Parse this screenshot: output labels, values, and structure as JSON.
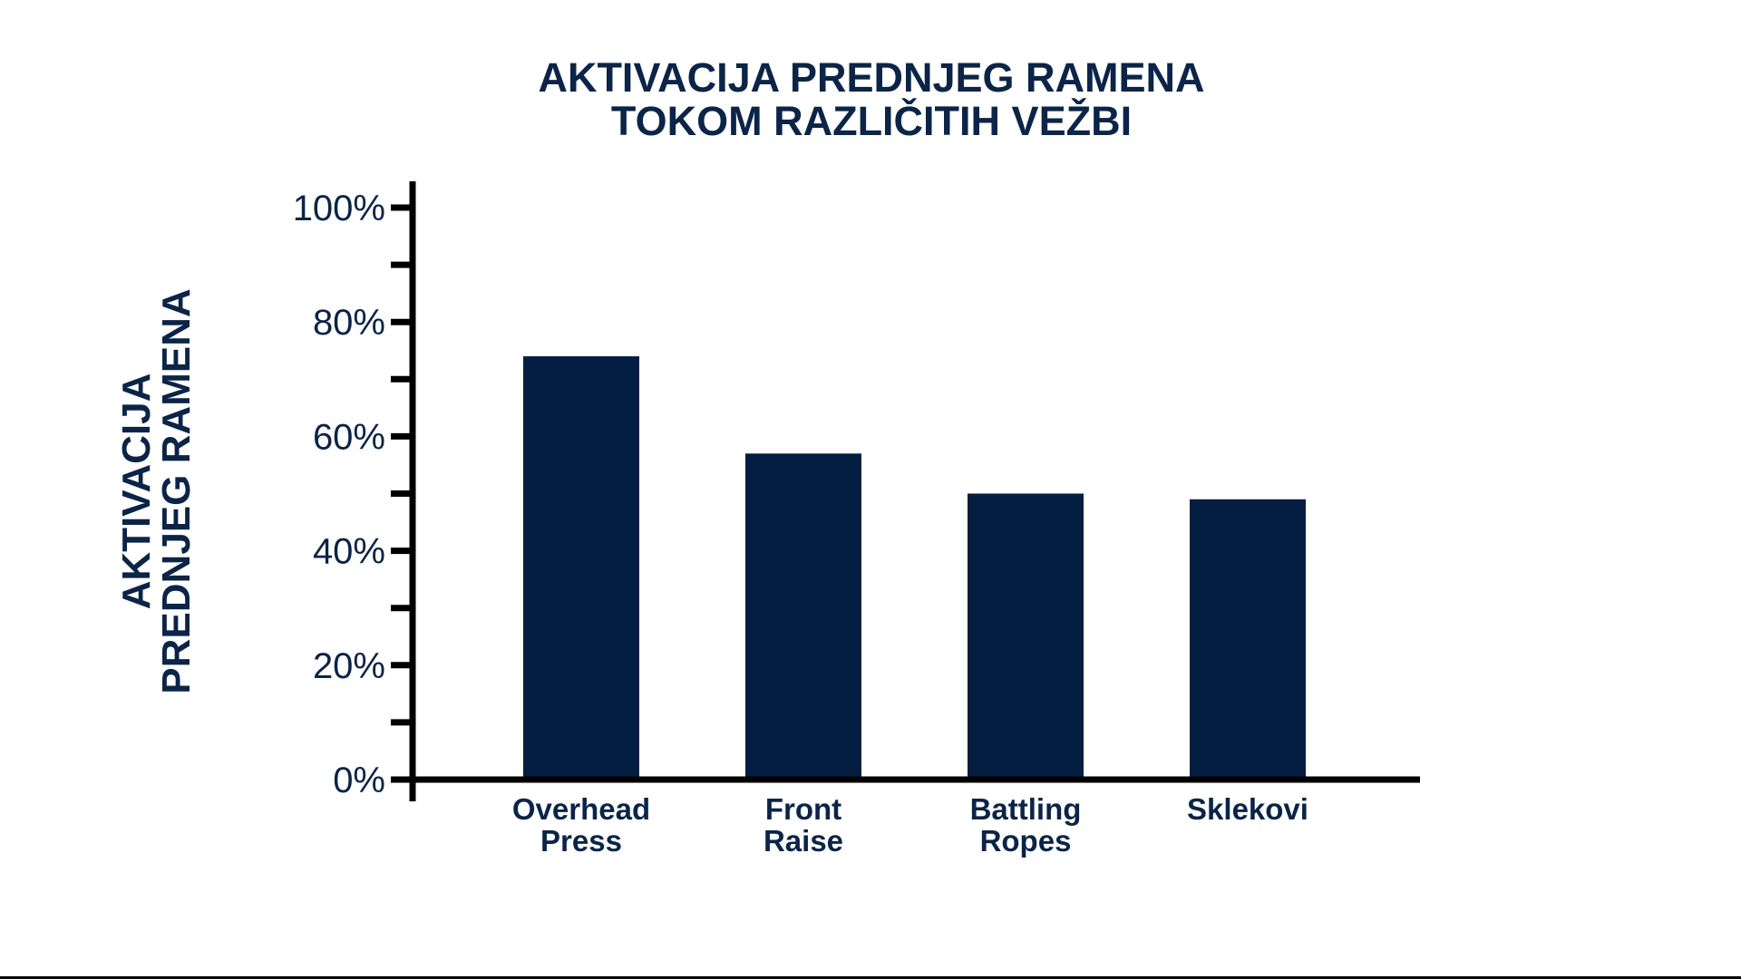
{
  "chart_data": {
    "type": "bar",
    "title": [
      "AKTIVACIJA PREDNJEG RAMENA",
      "TOKOM RAZLIČITIH VEŽBI"
    ],
    "ylabel": [
      "AKTIVACIJA",
      "PREDNJEG RAMENA"
    ],
    "xlabel": "",
    "categories": [
      [
        "Overhead",
        "Press"
      ],
      [
        "Front",
        "Raise"
      ],
      [
        "Battling",
        "Ropes"
      ],
      [
        "Sklekovi"
      ]
    ],
    "values": [
      74,
      57,
      50,
      49
    ],
    "unit": "%",
    "ylim": [
      0,
      100
    ],
    "yticks": [
      0,
      20,
      40,
      60,
      80,
      100
    ],
    "ytick_labels": [
      "0%",
      "20%",
      "40%",
      "60%",
      "80%",
      "100%"
    ],
    "minor_ticks": [
      10,
      30,
      50,
      70,
      90
    ],
    "grid": false,
    "legend": "none",
    "colors": {
      "bar": "#031e40",
      "text": "#0b2447",
      "axis": "#000000"
    }
  }
}
